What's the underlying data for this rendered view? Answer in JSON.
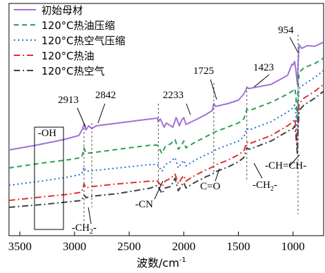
{
  "chart_data": {
    "type": "line",
    "xlabel": "波数/cm",
    "xlabel_sup": "-1",
    "xlim": [
      3600,
      720
    ],
    "x_ticks": [
      3500,
      3000,
      2500,
      2000,
      1500,
      1000
    ],
    "x_tick_labels": [
      "3500",
      "3000",
      "2500",
      "2000",
      "1500",
      "1000"
    ],
    "y_axis_shown": false,
    "legend_position": "top-left",
    "series": [
      {
        "name": "初始母材",
        "color": "#a070d8",
        "dash": "solid",
        "points": [
          [
            3600,
            217
          ],
          [
            3350,
            210
          ],
          [
            3100,
            202
          ],
          [
            2960,
            196
          ],
          [
            2925,
            186
          ],
          [
            2913,
            179
          ],
          [
            2895,
            188
          ],
          [
            2870,
            182
          ],
          [
            2842,
            186
          ],
          [
            2800,
            182
          ],
          [
            2500,
            176
          ],
          [
            2300,
            172
          ],
          [
            2240,
            171
          ],
          [
            2233,
            176
          ],
          [
            2215,
            172
          ],
          [
            2180,
            184
          ],
          [
            2160,
            178
          ],
          [
            2100,
            184
          ],
          [
            2070,
            170
          ],
          [
            2040,
            182
          ],
          [
            2020,
            174
          ],
          [
            2000,
            170
          ],
          [
            1980,
            180
          ],
          [
            1900,
            174
          ],
          [
            1800,
            166
          ],
          [
            1740,
            160
          ],
          [
            1725,
            150
          ],
          [
            1710,
            154
          ],
          [
            1600,
            150
          ],
          [
            1500,
            145
          ],
          [
            1450,
            136
          ],
          [
            1423,
            127
          ],
          [
            1400,
            128
          ],
          [
            1200,
            122
          ],
          [
            1050,
            109
          ],
          [
            1010,
            93
          ],
          [
            1000,
            94
          ],
          [
            985,
            89
          ],
          [
            975,
            100
          ],
          [
            960,
            122
          ],
          [
            954,
            95
          ],
          [
            945,
            65
          ],
          [
            920,
            70
          ],
          [
            870,
            66
          ],
          [
            800,
            67
          ],
          [
            720,
            61
          ]
        ]
      },
      {
        "name": "120°C热油压缩",
        "color": "#2a9d55",
        "dash": "7,5",
        "points": [
          [
            3600,
            243
          ],
          [
            3300,
            236
          ],
          [
            3050,
            231
          ],
          [
            2935,
            228
          ],
          [
            2913,
            214
          ],
          [
            2895,
            222
          ],
          [
            2842,
            221
          ],
          [
            2600,
            216
          ],
          [
            2300,
            210
          ],
          [
            2240,
            210
          ],
          [
            2200,
            222
          ],
          [
            2170,
            212
          ],
          [
            2120,
            208
          ],
          [
            2080,
            202
          ],
          [
            2050,
            216
          ],
          [
            2020,
            210
          ],
          [
            2000,
            204
          ],
          [
            1980,
            214
          ],
          [
            1900,
            206
          ],
          [
            1800,
            198
          ],
          [
            1740,
            193
          ],
          [
            1700,
            190
          ],
          [
            1600,
            184
          ],
          [
            1500,
            178
          ],
          [
            1450,
            172
          ],
          [
            1423,
            158
          ],
          [
            1400,
            160
          ],
          [
            1200,
            148
          ],
          [
            1050,
            136
          ],
          [
            1000,
            131
          ],
          [
            985,
            128
          ],
          [
            975,
            136
          ],
          [
            960,
            176
          ],
          [
            954,
            130
          ],
          [
            945,
            105
          ],
          [
            900,
            98
          ],
          [
            800,
            92
          ],
          [
            720,
            84
          ]
        ]
      },
      {
        "name": "120°C热空气压缩",
        "color": "#2070d0",
        "dash": "2,4",
        "points": [
          [
            3600,
            268
          ],
          [
            3300,
            262
          ],
          [
            3050,
            256
          ],
          [
            2935,
            252
          ],
          [
            2913,
            242
          ],
          [
            2895,
            248
          ],
          [
            2842,
            247
          ],
          [
            2600,
            243
          ],
          [
            2300,
            238
          ],
          [
            2240,
            238
          ],
          [
            2200,
            248
          ],
          [
            2170,
            238
          ],
          [
            2120,
            234
          ],
          [
            2080,
            228
          ],
          [
            2050,
            243
          ],
          [
            2020,
            236
          ],
          [
            2000,
            232
          ],
          [
            1980,
            240
          ],
          [
            1900,
            232
          ],
          [
            1800,
            224
          ],
          [
            1740,
            220
          ],
          [
            1700,
            216
          ],
          [
            1600,
            210
          ],
          [
            1500,
            204
          ],
          [
            1450,
            198
          ],
          [
            1423,
            186
          ],
          [
            1400,
            188
          ],
          [
            1200,
            176
          ],
          [
            1050,
            162
          ],
          [
            1000,
            156
          ],
          [
            985,
            152
          ],
          [
            975,
            162
          ],
          [
            960,
            196
          ],
          [
            954,
            158
          ],
          [
            945,
            128
          ],
          [
            900,
            122
          ],
          [
            800,
            112
          ],
          [
            720,
            102
          ]
        ]
      },
      {
        "name": "120°C热油",
        "color": "#e03030",
        "dash": "9,4,2,4",
        "points": [
          [
            3600,
            290
          ],
          [
            3300,
            285
          ],
          [
            3050,
            281
          ],
          [
            2935,
            278
          ],
          [
            2913,
            266
          ],
          [
            2895,
            272
          ],
          [
            2842,
            270
          ],
          [
            2600,
            266
          ],
          [
            2300,
            262
          ],
          [
            2240,
            262
          ],
          [
            2200,
            270
          ],
          [
            2170,
            262
          ],
          [
            2120,
            258
          ],
          [
            2080,
            252
          ],
          [
            2050,
            266
          ],
          [
            2020,
            258
          ],
          [
            2000,
            254
          ],
          [
            1980,
            262
          ],
          [
            1900,
            254
          ],
          [
            1800,
            246
          ],
          [
            1740,
            242
          ],
          [
            1700,
            238
          ],
          [
            1600,
            232
          ],
          [
            1500,
            224
          ],
          [
            1450,
            218
          ],
          [
            1423,
            206
          ],
          [
            1400,
            208
          ],
          [
            1200,
            196
          ],
          [
            1050,
            182
          ],
          [
            1000,
            176
          ],
          [
            985,
            172
          ],
          [
            975,
            182
          ],
          [
            960,
            214
          ],
          [
            954,
            178
          ],
          [
            945,
            150
          ],
          [
            900,
            142
          ],
          [
            800,
            132
          ],
          [
            720,
            122
          ]
        ]
      },
      {
        "name": "120°C热空气",
        "color": "#404040",
        "dash": "9,4,2,4",
        "points": [
          [
            3600,
            300
          ],
          [
            3300,
            296
          ],
          [
            3050,
            292
          ],
          [
            2935,
            290
          ],
          [
            2913,
            282
          ],
          [
            2895,
            286
          ],
          [
            2842,
            284
          ],
          [
            2600,
            280
          ],
          [
            2300,
            272
          ],
          [
            2240,
            268
          ],
          [
            2200,
            280
          ],
          [
            2170,
            272
          ],
          [
            2120,
            270
          ],
          [
            2080,
            258
          ],
          [
            2050,
            276
          ],
          [
            2020,
            268
          ],
          [
            2000,
            264
          ],
          [
            1980,
            272
          ],
          [
            1900,
            264
          ],
          [
            1800,
            256
          ],
          [
            1740,
            252
          ],
          [
            1700,
            248
          ],
          [
            1600,
            242
          ],
          [
            1500,
            234
          ],
          [
            1450,
            228
          ],
          [
            1423,
            214
          ],
          [
            1400,
            216
          ],
          [
            1200,
            204
          ],
          [
            1050,
            190
          ],
          [
            1000,
            186
          ],
          [
            985,
            182
          ],
          [
            975,
            192
          ],
          [
            960,
            224
          ],
          [
            954,
            190
          ],
          [
            945,
            160
          ],
          [
            900,
            152
          ],
          [
            800,
            142
          ],
          [
            720,
            132
          ]
        ]
      }
    ],
    "peak_labels": [
      {
        "text": "2913",
        "x": 2913
      },
      {
        "text": "2842",
        "x": 2842
      },
      {
        "text": "2233",
        "x": 2233
      },
      {
        "text": "1725",
        "x": 1725
      },
      {
        "text": "1423",
        "x": 1423
      },
      {
        "text": "954",
        "x": 954
      }
    ],
    "group_labels": [
      {
        "text": "-OH"
      },
      {
        "text": "-CH",
        "sub": "2",
        "suffix": "-"
      },
      {
        "text": "-CN"
      },
      {
        "text": "C=O"
      },
      {
        "text": "-CH",
        "sub": "2",
        "suffix": "-"
      },
      {
        "text": "-CH=CH-"
      }
    ]
  }
}
